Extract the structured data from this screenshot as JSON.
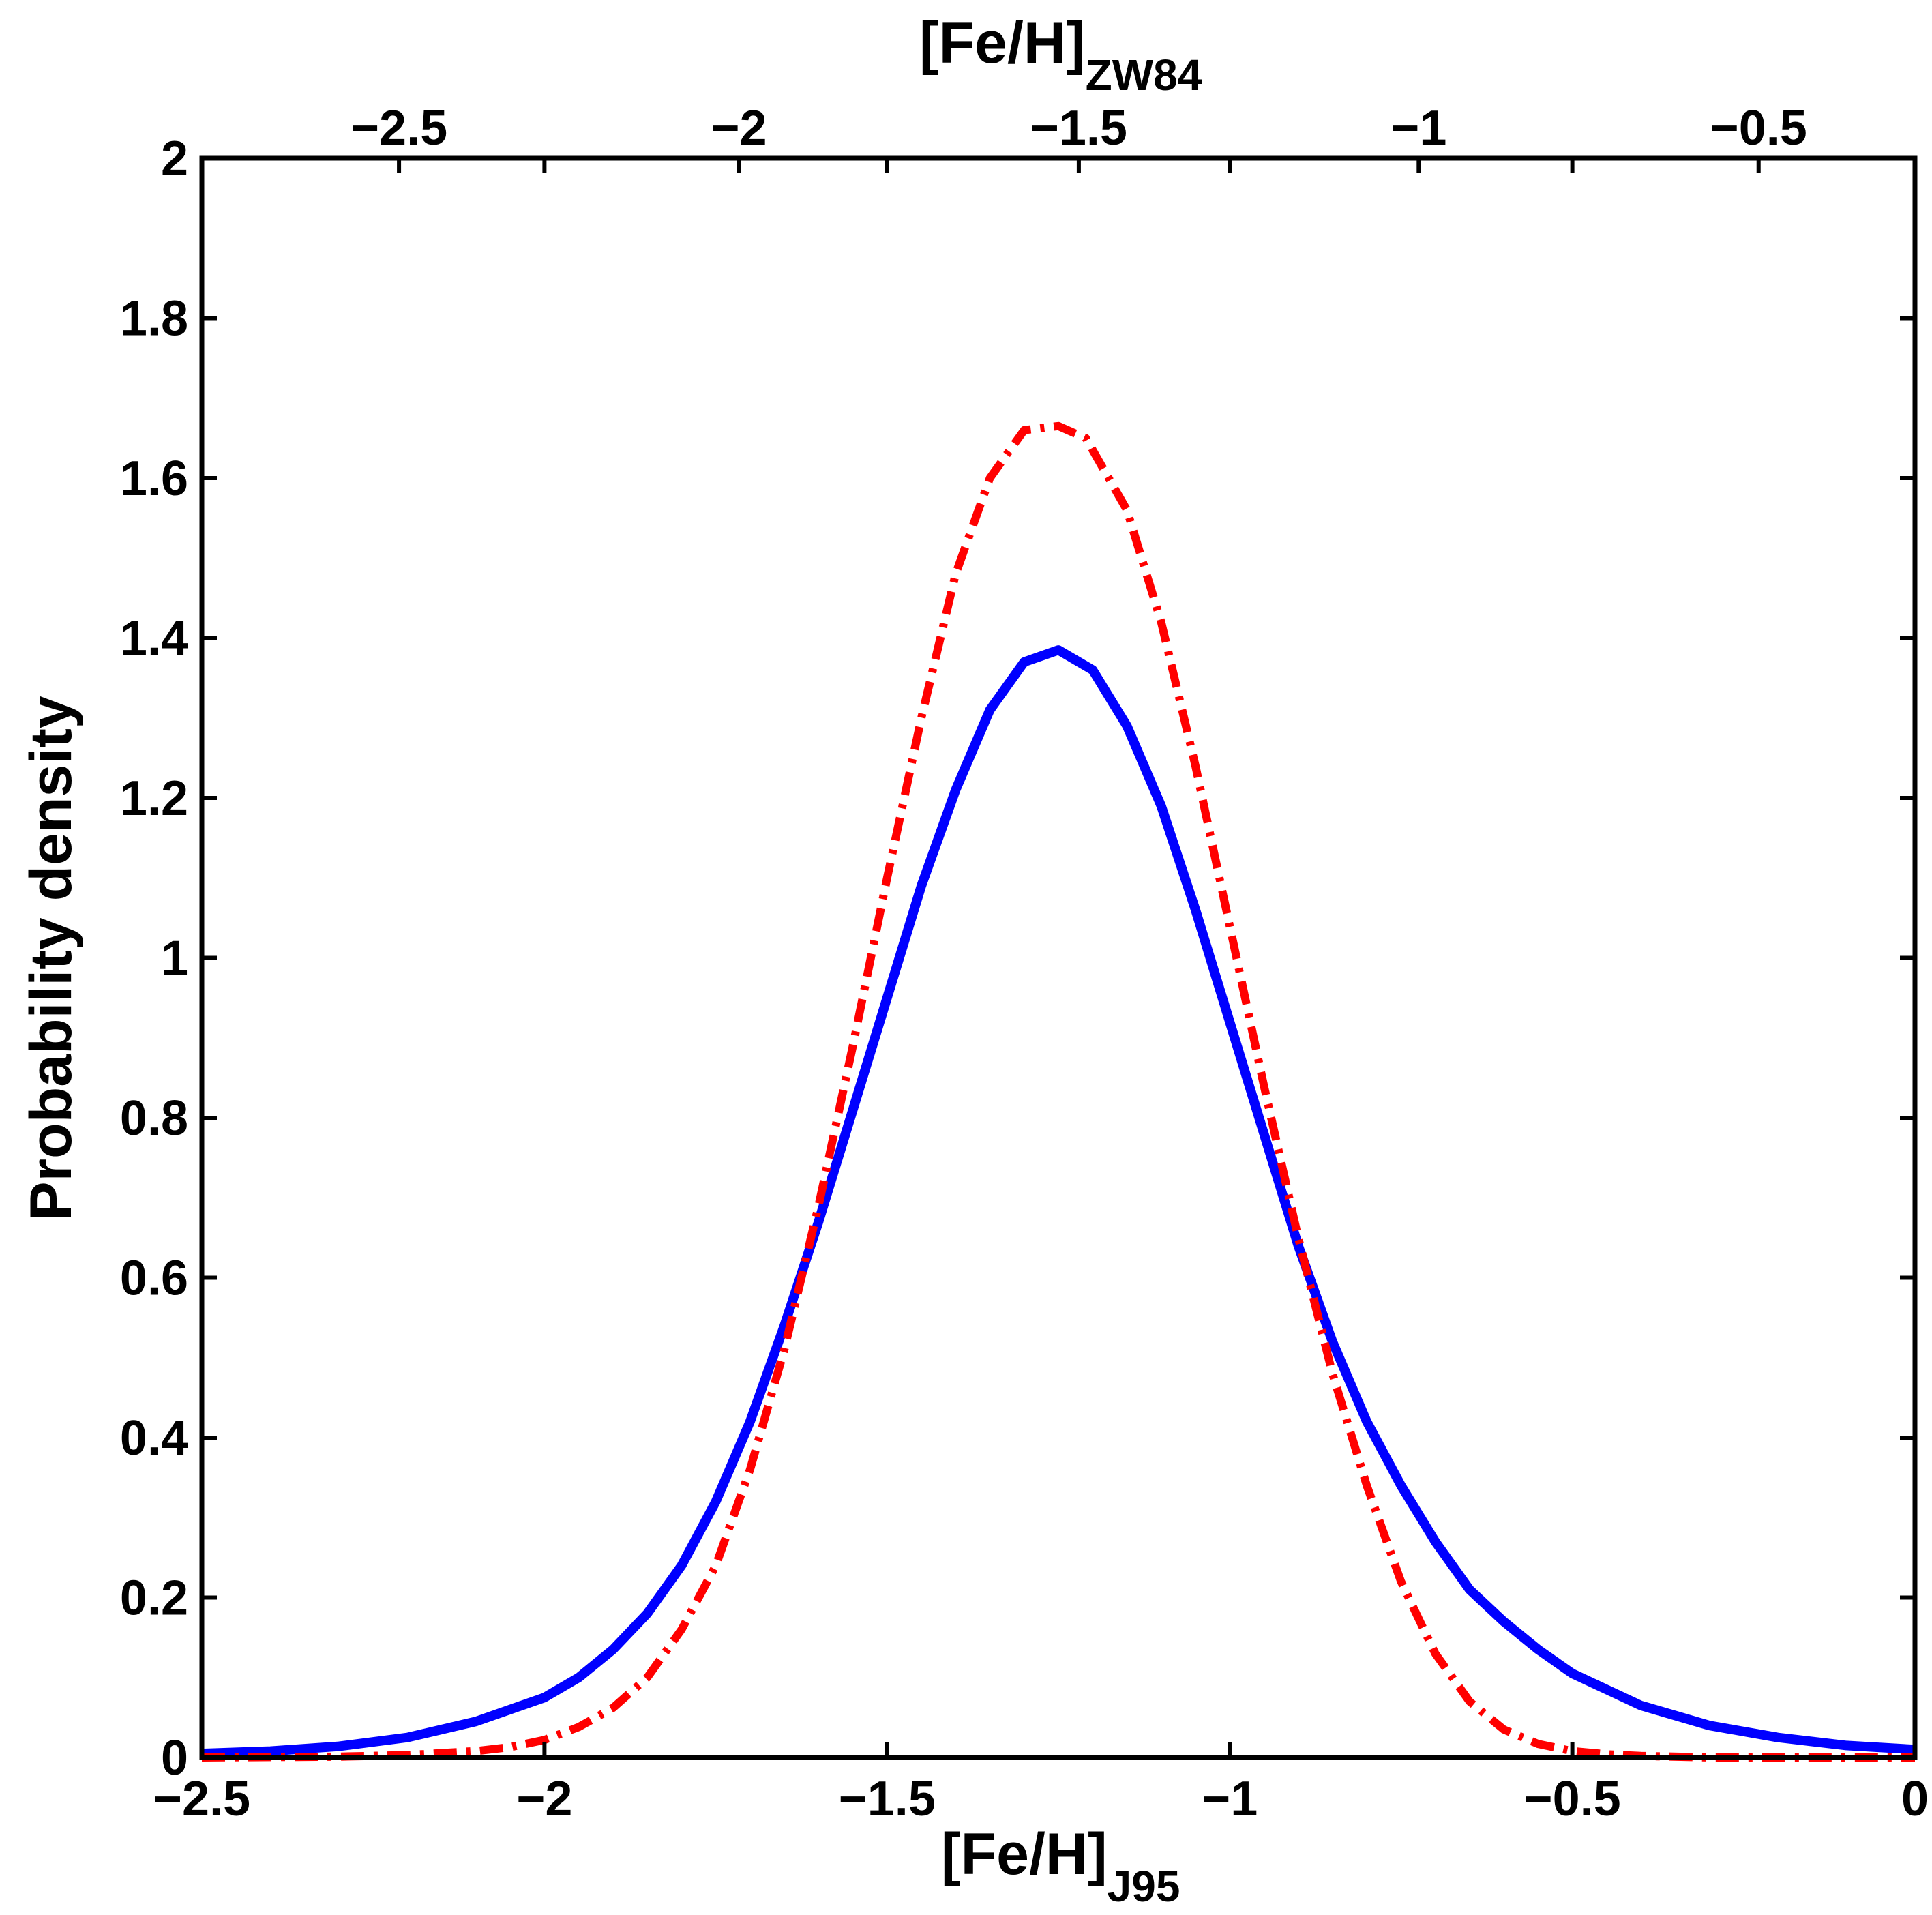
{
  "chart_data": {
    "type": "line",
    "title": "",
    "xlabel": {
      "main": "[Fe/H]",
      "sub": "J95"
    },
    "x2label": {
      "main": "[Fe/H]",
      "sub": "ZW84"
    },
    "ylabel": "Probability density",
    "xlim": [
      -2.5,
      0
    ],
    "ylim": [
      0,
      2
    ],
    "x2lim": [
      -2.79,
      -0.27
    ],
    "grid": false,
    "x_ticks": [
      {
        "value": -2.5,
        "label": "−2.5"
      },
      {
        "value": -2.0,
        "label": "−2"
      },
      {
        "value": -1.5,
        "label": "−1.5"
      },
      {
        "value": -1.0,
        "label": "−1"
      },
      {
        "value": -0.5,
        "label": "−0.5"
      },
      {
        "value": 0.0,
        "label": "0"
      }
    ],
    "x2_ticks": [
      {
        "value": -2.5,
        "label": "−2.5"
      },
      {
        "value": -2.0,
        "label": "−2"
      },
      {
        "value": -1.5,
        "label": "−1.5"
      },
      {
        "value": -1.0,
        "label": "−1"
      },
      {
        "value": -0.5,
        "label": "−0.5"
      }
    ],
    "y_ticks": [
      {
        "value": 0,
        "label": "0"
      },
      {
        "value": 0.2,
        "label": "0.2"
      },
      {
        "value": 0.4,
        "label": "0.4"
      },
      {
        "value": 0.6,
        "label": "0.6"
      },
      {
        "value": 0.8,
        "label": "0.8"
      },
      {
        "value": 1.0,
        "label": "1"
      },
      {
        "value": 1.2,
        "label": "1.2"
      },
      {
        "value": 1.4,
        "label": "1.4"
      },
      {
        "value": 1.6,
        "label": "1.6"
      },
      {
        "value": 1.8,
        "label": "1.8"
      },
      {
        "value": 2.0,
        "label": "2"
      }
    ],
    "series": [
      {
        "name": "solid blue",
        "color": "#0000ff",
        "style": "solid",
        "x": [
          -2.5,
          -2.4,
          -2.3,
          -2.2,
          -2.1,
          -2.0,
          -1.95,
          -1.9,
          -1.85,
          -1.8,
          -1.75,
          -1.7,
          -1.65,
          -1.6,
          -1.55,
          -1.5,
          -1.45,
          -1.4,
          -1.35,
          -1.3,
          -1.25,
          -1.2,
          -1.15,
          -1.1,
          -1.05,
          -1.0,
          -0.95,
          -0.9,
          -0.85,
          -0.8,
          -0.75,
          -0.7,
          -0.65,
          -0.6,
          -0.55,
          -0.5,
          -0.45,
          -0.4,
          -0.3,
          -0.2,
          -0.1,
          0.0
        ],
        "y": [
          0.005,
          0.008,
          0.014,
          0.025,
          0.045,
          0.075,
          0.1,
          0.135,
          0.18,
          0.24,
          0.32,
          0.42,
          0.54,
          0.67,
          0.81,
          0.95,
          1.09,
          1.21,
          1.31,
          1.37,
          1.385,
          1.36,
          1.29,
          1.19,
          1.06,
          0.92,
          0.78,
          0.64,
          0.52,
          0.42,
          0.34,
          0.27,
          0.21,
          0.17,
          0.135,
          0.105,
          0.085,
          0.065,
          0.04,
          0.025,
          0.015,
          0.01
        ]
      },
      {
        "name": "dash-dot red",
        "color": "#ff0000",
        "style": "dashdot",
        "x": [
          -2.5,
          -2.3,
          -2.2,
          -2.1,
          -2.05,
          -2.0,
          -1.95,
          -1.9,
          -1.85,
          -1.8,
          -1.75,
          -1.7,
          -1.65,
          -1.6,
          -1.55,
          -1.5,
          -1.45,
          -1.4,
          -1.35,
          -1.3,
          -1.25,
          -1.21,
          -1.15,
          -1.1,
          -1.05,
          -1.0,
          -0.95,
          -0.9,
          -0.85,
          -0.8,
          -0.75,
          -0.7,
          -0.65,
          -0.6,
          -0.55,
          -0.5,
          -0.45,
          -0.4,
          -0.3,
          -0.2,
          -0.1,
          0.0
        ],
        "y": [
          0.0,
          0.001,
          0.003,
          0.008,
          0.013,
          0.022,
          0.038,
          0.062,
          0.1,
          0.16,
          0.24,
          0.36,
          0.51,
          0.69,
          0.89,
          1.1,
          1.3,
          1.48,
          1.6,
          1.66,
          1.665,
          1.65,
          1.56,
          1.42,
          1.24,
          1.04,
          0.84,
          0.65,
          0.48,
          0.34,
          0.22,
          0.13,
          0.07,
          0.035,
          0.017,
          0.008,
          0.004,
          0.002,
          0.0,
          0.0,
          0.0,
          0.0
        ]
      }
    ]
  }
}
